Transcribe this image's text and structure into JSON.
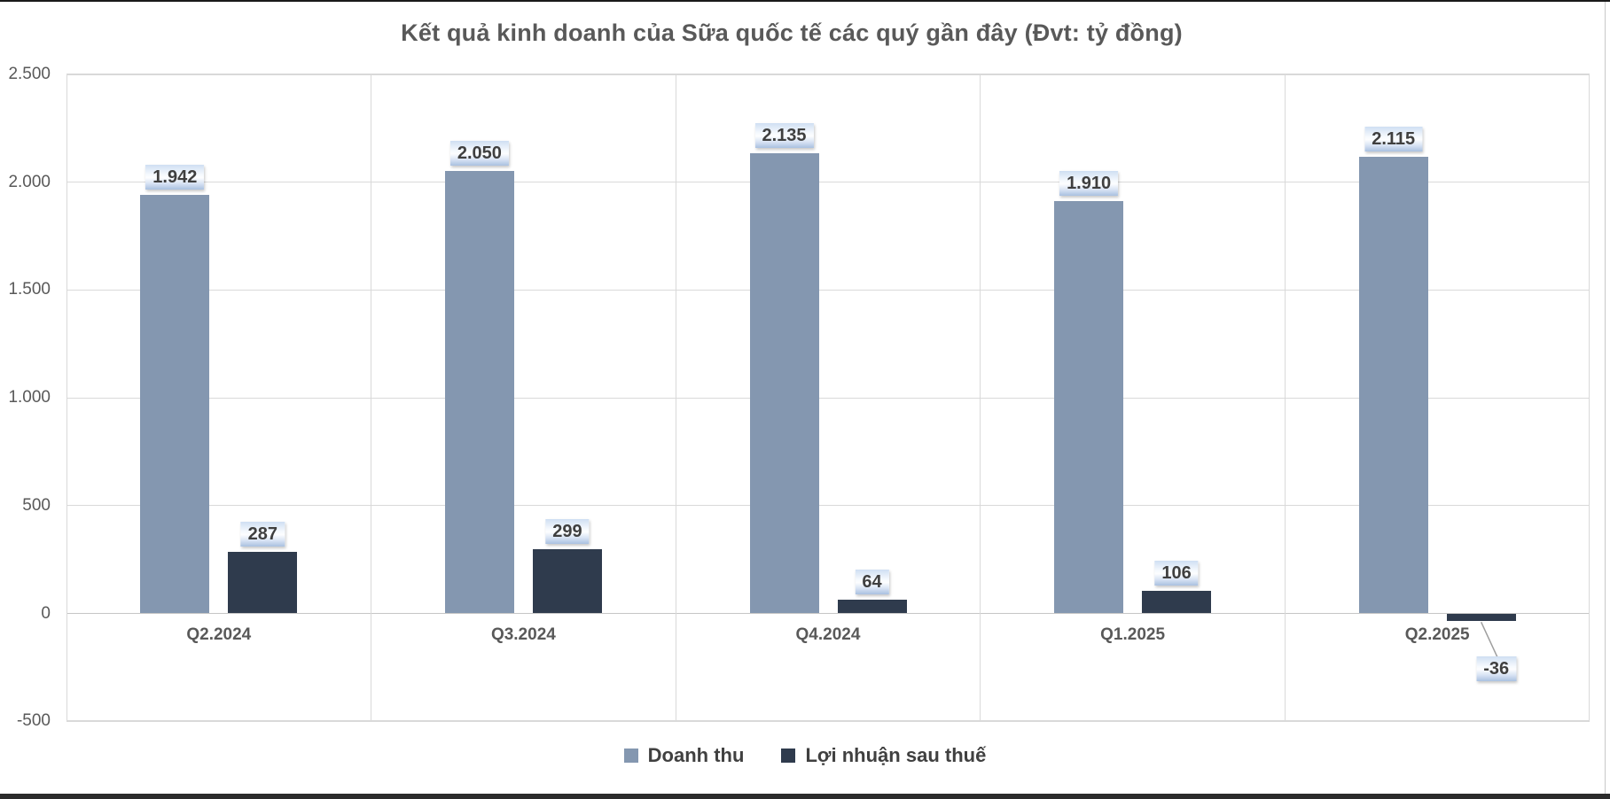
{
  "window": {
    "background": "#FFFFFF",
    "top_edge_color": "#1A1A1A",
    "bottom_edge_color": "#2B2B2B",
    "right_edge_color": "#C9C9C9"
  },
  "colors": {
    "gridline": "#D9D9D9",
    "axis_text": "#595959",
    "title_text": "#595959",
    "data_label_text": "#3F3F3F",
    "legend_text": "#404040",
    "leader_line": "#9E9E9E",
    "series_revenue": "#8497B0",
    "series_profit": "#2F3B4D"
  },
  "chart_data": {
    "type": "bar",
    "title": "Kết quả kinh doanh của Sữa quốc tế các quý gần đây (Đvt: tỷ đồng)",
    "categories": [
      "Q2.2024",
      "Q3.2024",
      "Q4.2024",
      "Q1.2025",
      "Q2.2025"
    ],
    "series": [
      {
        "name": "Doanh thu",
        "color": "#8497B0",
        "values": [
          1942,
          2050,
          2135,
          1910,
          2115
        ],
        "value_labels": [
          "1.942",
          "2.050",
          "2.135",
          "1.910",
          "2.115"
        ]
      },
      {
        "name": "Lợi nhuận sau thuế",
        "color": "#2F3B4D",
        "values": [
          287,
          299,
          64,
          106,
          -36
        ],
        "value_labels": [
          "287",
          "299",
          "64",
          "106",
          "-36"
        ]
      }
    ],
    "y_axis": {
      "min": -500,
      "max": 2500,
      "tick_values": [
        2500,
        2000,
        1500,
        1000,
        500,
        0,
        -500
      ],
      "tick_labels": [
        "2.500",
        "2.000",
        "1.500",
        "1.000",
        "500",
        "0",
        "-500"
      ]
    },
    "grid": true,
    "legend_position": "bottom"
  }
}
